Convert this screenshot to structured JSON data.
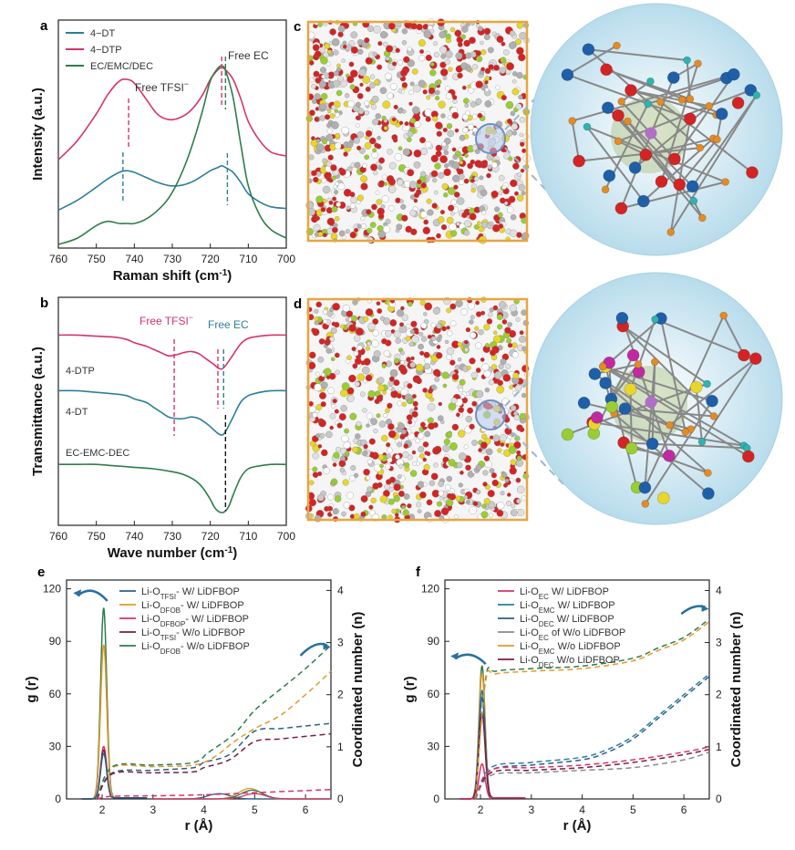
{
  "colors": {
    "teal": "#2b7f9a",
    "pink": "#d6336c",
    "green": "#2e7d4a",
    "orange": "#e39a2b",
    "maroon": "#7a1f3d",
    "darkblue": "#2a5f8c",
    "gray": "#8a8a8a",
    "frame": "#e8a542",
    "sphere": "#d4ecf6"
  },
  "panel_letters": [
    "a",
    "b",
    "c",
    "d",
    "e",
    "f"
  ],
  "chart_data": [
    {
      "id": "a",
      "type": "line",
      "title": "",
      "xlabel": "Raman shift (cm",
      "xlabel_sup": "-1",
      "xlabel_end": ")",
      "ylabel": "Intensity (a.u.)",
      "xlim": [
        760,
        700
      ],
      "ylim": [
        0,
        1
      ],
      "xticks": [
        760,
        750,
        740,
        730,
        720,
        710,
        700
      ],
      "legend": [
        "4−DT",
        "4−DTP",
        "EC/EMC/DEC"
      ],
      "annotations": [
        {
          "text": "Free TFSI",
          "sup": "−"
        },
        {
          "text": "Free EC",
          "sup": ""
        }
      ],
      "series": [
        {
          "name": "4−DTP",
          "color": "pink",
          "x": [
            760,
            755,
            750,
            747,
            744,
            742,
            740,
            737,
            734,
            731,
            728,
            725,
            722,
            720,
            718,
            717,
            716,
            714,
            712,
            710,
            707,
            704,
            700
          ],
          "y": [
            0.38,
            0.48,
            0.62,
            0.72,
            0.79,
            0.8,
            0.78,
            0.7,
            0.62,
            0.59,
            0.6,
            0.64,
            0.72,
            0.8,
            0.85,
            0.86,
            0.85,
            0.8,
            0.7,
            0.58,
            0.48,
            0.42,
            0.4
          ]
        },
        {
          "name": "4−DT",
          "color": "teal",
          "x": [
            760,
            755,
            750,
            747,
            744,
            742,
            740,
            737,
            734,
            731,
            728,
            725,
            722,
            720,
            718,
            717,
            716,
            714,
            712,
            710,
            707,
            704,
            700
          ],
          "y": [
            0.22,
            0.28,
            0.36,
            0.41,
            0.45,
            0.46,
            0.45,
            0.42,
            0.39,
            0.37,
            0.37,
            0.39,
            0.43,
            0.46,
            0.48,
            0.49,
            0.48,
            0.45,
            0.39,
            0.32,
            0.27,
            0.24,
            0.23
          ]
        },
        {
          "name": "EC/EMC/DEC",
          "color": "green",
          "x": [
            760,
            755,
            750,
            747,
            744,
            742,
            740,
            737,
            734,
            731,
            728,
            725,
            722,
            720,
            718,
            717,
            716,
            714,
            712,
            710,
            707,
            704,
            700
          ],
          "y": [
            0.0,
            0.03,
            0.09,
            0.11,
            0.1,
            0.1,
            0.1,
            0.12,
            0.16,
            0.22,
            0.32,
            0.46,
            0.64,
            0.78,
            0.84,
            0.85,
            0.83,
            0.7,
            0.48,
            0.28,
            0.14,
            0.07,
            0.03
          ]
        }
      ]
    },
    {
      "id": "b",
      "type": "line",
      "xlabel": "Wave number (cm",
      "xlabel_sup": "-1",
      "xlabel_end": ")",
      "ylabel": "Transmittance (a.u.)",
      "xlim": [
        760,
        700
      ],
      "ylim": [
        0,
        1
      ],
      "xticks": [
        760,
        750,
        740,
        730,
        720,
        710,
        700
      ],
      "series_labels": [
        "4-DTP",
        "4-DT",
        "EC-EMC-DEC"
      ],
      "annotations": [
        {
          "text": "Free TFSI",
          "sup": "−"
        },
        {
          "text": "Free EC",
          "sup": ""
        }
      ],
      "series": [
        {
          "name": "4-DTP",
          "color": "pink",
          "x": [
            760,
            755,
            750,
            745,
            742,
            740,
            737,
            735,
            733,
            731,
            729,
            727,
            725,
            723,
            721,
            719,
            718,
            717,
            716,
            714,
            712,
            710,
            707,
            704,
            700
          ],
          "y": [
            0.88,
            0.88,
            0.87,
            0.86,
            0.84,
            0.81,
            0.78,
            0.75,
            0.72,
            0.69,
            0.7,
            0.72,
            0.73,
            0.71,
            0.66,
            0.61,
            0.58,
            0.57,
            0.6,
            0.7,
            0.8,
            0.85,
            0.87,
            0.88,
            0.88
          ]
        },
        {
          "name": "4-DT",
          "color": "teal",
          "x": [
            760,
            755,
            750,
            745,
            742,
            740,
            737,
            735,
            733,
            731,
            729,
            727,
            725,
            723,
            721,
            719,
            718,
            717,
            716,
            714,
            712,
            710,
            707,
            704,
            700
          ],
          "y": [
            0.62,
            0.62,
            0.61,
            0.6,
            0.59,
            0.57,
            0.55,
            0.52,
            0.49,
            0.46,
            0.45,
            0.45,
            0.46,
            0.45,
            0.42,
            0.38,
            0.36,
            0.35,
            0.37,
            0.46,
            0.55,
            0.59,
            0.61,
            0.62,
            0.62
          ]
        },
        {
          "name": "EC-EMC-DEC",
          "color": "green",
          "x": [
            760,
            755,
            750,
            745,
            740,
            735,
            730,
            727,
            724,
            722,
            720,
            719,
            718,
            717,
            716,
            715,
            714,
            712,
            710,
            707,
            704,
            700
          ],
          "y": [
            0.33,
            0.33,
            0.33,
            0.32,
            0.31,
            0.3,
            0.28,
            0.26,
            0.22,
            0.17,
            0.09,
            0.04,
            0.01,
            0.0,
            0.01,
            0.05,
            0.12,
            0.24,
            0.3,
            0.32,
            0.33,
            0.33
          ]
        }
      ]
    },
    {
      "id": "e",
      "type": "line",
      "xlabel": "r (Å)",
      "ylabel": "g (r)",
      "ylabel2": "Coordinated number (n)",
      "xlim": [
        1.3,
        6.5
      ],
      "ylim": [
        0,
        125
      ],
      "y2lim": [
        0,
        4.2
      ],
      "xticks": [
        2,
        3,
        4,
        5,
        6
      ],
      "yticks": [
        0,
        30,
        60,
        90,
        120
      ],
      "y2ticks": [
        0,
        1,
        2,
        3,
        4
      ],
      "legend": [
        {
          "pre": "Li-O",
          "sub": "TFSI",
          "post": "- W/ LiDFBOP",
          "color": "darkblue"
        },
        {
          "pre": "Li-O",
          "sub": "DFOB",
          "post": "- W/ LiDFBOP",
          "color": "orange"
        },
        {
          "pre": "Li-O",
          "sub": "DFBOP",
          "post": "- W/ LiDFBOP",
          "color": "pink"
        },
        {
          "pre": "Li-O",
          "sub": "TFSI",
          "post": "- W/o LiDFBOP",
          "color": "maroon"
        },
        {
          "pre": "Li-O",
          "sub": "DFOB",
          "post": "- W/o LiDFBOP",
          "color": "green"
        }
      ],
      "peaks": [
        {
          "color": "green",
          "height": 109
        },
        {
          "color": "orange",
          "height": 88
        },
        {
          "color": "pink",
          "height": 30
        },
        {
          "color": "maroon",
          "height": 28
        },
        {
          "color": "darkblue",
          "height": 26
        }
      ],
      "cn_series": [
        {
          "color": "darkblue",
          "x": [
            1.9,
            2.2,
            3.0,
            3.8,
            4.0,
            4.5,
            5.0,
            5.5,
            6.0,
            6.5
          ],
          "y": [
            0,
            0.5,
            0.55,
            0.6,
            0.7,
            0.85,
            1.3,
            1.35,
            1.4,
            1.45
          ]
        },
        {
          "color": "orange",
          "x": [
            1.9,
            2.2,
            3.0,
            3.8,
            4.2,
            4.6,
            5.0,
            5.5,
            6.0,
            6.5
          ],
          "y": [
            0,
            0.6,
            0.62,
            0.65,
            0.8,
            1.1,
            1.35,
            1.6,
            2.0,
            2.45
          ]
        },
        {
          "color": "green",
          "x": [
            1.9,
            2.2,
            3.0,
            3.8,
            4.1,
            4.6,
            5.0,
            5.5,
            6.0,
            6.5
          ],
          "y": [
            0,
            0.62,
            0.65,
            0.7,
            0.9,
            1.25,
            1.7,
            2.1,
            2.5,
            2.95
          ]
        },
        {
          "color": "maroon",
          "x": [
            1.9,
            2.2,
            3.0,
            3.8,
            4.0,
            4.5,
            5.0,
            5.5,
            6.0,
            6.5
          ],
          "y": [
            0,
            0.48,
            0.5,
            0.52,
            0.6,
            0.75,
            1.1,
            1.15,
            1.2,
            1.25
          ]
        },
        {
          "color": "pink",
          "x": [
            1.9,
            2.2,
            3.0,
            4.0,
            5.0,
            6.0,
            6.5
          ],
          "y": [
            0,
            0.05,
            0.06,
            0.08,
            0.12,
            0.16,
            0.18
          ]
        }
      ],
      "bumps": [
        {
          "color": "darkblue",
          "center": 4.3,
          "height": 3
        },
        {
          "color": "orange",
          "center": 4.9,
          "height": 6
        },
        {
          "color": "green",
          "center": 4.95,
          "height": 5
        },
        {
          "color": "pink",
          "center": 5.0,
          "height": 3
        }
      ]
    },
    {
      "id": "f",
      "type": "line",
      "xlabel": "r (Å)",
      "ylabel": "g (r)",
      "ylabel2": "Coordinated number (n)",
      "xlim": [
        1.3,
        6.5
      ],
      "ylim": [
        0,
        125
      ],
      "y2lim": [
        0,
        4.2
      ],
      "xticks": [
        2,
        3,
        4,
        5,
        6
      ],
      "yticks": [
        0,
        30,
        60,
        90,
        120
      ],
      "y2ticks": [
        0,
        1,
        2,
        3,
        4
      ],
      "legend": [
        {
          "pre": "Li-O",
          "sub": "EC",
          "post": " W/ LiDFBOP",
          "color": "pink"
        },
        {
          "pre": "Li-O",
          "sub": "EMC",
          "post": " W/ LiDFBOP",
          "color": "teal"
        },
        {
          "pre": "Li-O",
          "sub": "DEC",
          "post": " W/ LiDFBOP",
          "color": "darkblue"
        },
        {
          "pre": "Li-O",
          "sub": "EC",
          "post": " of W/o LiDFBOP",
          "color": "gray"
        },
        {
          "pre": "Li-O",
          "sub": "EMC",
          "post": " W/o LiDFBOP",
          "color": "orange"
        },
        {
          "pre": "Li-O",
          "sub": "DEC",
          "post": " W/o LiDFBOP",
          "color": "maroon"
        }
      ],
      "peaks": [
        {
          "color": "green",
          "height": 76
        },
        {
          "color": "orange",
          "height": 72
        },
        {
          "color": "teal",
          "height": 62
        },
        {
          "color": "darkblue",
          "height": 58
        },
        {
          "color": "maroon",
          "height": 49
        },
        {
          "color": "pink",
          "height": 20
        }
      ],
      "cn_series": [
        {
          "color": "green",
          "x": [
            1.9,
            2.1,
            2.3,
            3.0,
            4.0,
            5.0,
            5.5,
            6.0,
            6.5
          ],
          "y": [
            0,
            2.3,
            2.45,
            2.5,
            2.55,
            2.7,
            2.9,
            3.1,
            3.45
          ]
        },
        {
          "color": "orange",
          "x": [
            1.9,
            2.1,
            2.3,
            3.0,
            4.0,
            5.0,
            5.5,
            6.0,
            6.5
          ],
          "y": [
            0,
            2.25,
            2.4,
            2.45,
            2.5,
            2.65,
            2.85,
            3.05,
            3.4
          ]
        },
        {
          "color": "teal",
          "x": [
            1.9,
            2.2,
            3.0,
            4.0,
            4.5,
            5.0,
            5.5,
            6.0,
            6.5
          ],
          "y": [
            0,
            0.6,
            0.7,
            0.8,
            0.95,
            1.2,
            1.6,
            2.0,
            2.4
          ]
        },
        {
          "color": "darkblue",
          "x": [
            1.9,
            2.2,
            3.0,
            4.0,
            4.5,
            5.0,
            5.5,
            6.0,
            6.5
          ],
          "y": [
            0,
            0.55,
            0.65,
            0.75,
            0.9,
            1.15,
            1.55,
            1.95,
            2.35
          ]
        },
        {
          "color": "pink",
          "x": [
            1.9,
            2.2,
            3.0,
            4.0,
            5.0,
            6.0,
            6.5
          ],
          "y": [
            0,
            0.55,
            0.6,
            0.65,
            0.75,
            0.9,
            1.0
          ]
        },
        {
          "color": "maroon",
          "x": [
            1.9,
            2.2,
            3.0,
            4.0,
            5.0,
            6.0,
            6.5
          ],
          "y": [
            0,
            0.5,
            0.55,
            0.6,
            0.7,
            0.85,
            0.95
          ]
        },
        {
          "color": "gray",
          "x": [
            1.9,
            2.2,
            3.0,
            4.0,
            5.0,
            6.0,
            6.5
          ],
          "y": [
            0,
            0.45,
            0.5,
            0.55,
            0.6,
            0.75,
            0.9
          ]
        }
      ],
      "bumps": []
    }
  ]
}
